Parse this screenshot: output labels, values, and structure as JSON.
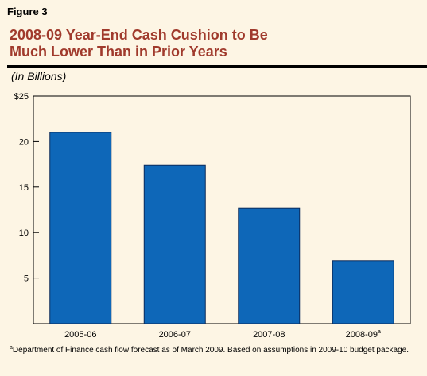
{
  "figure_label": "Figure 3",
  "title_lines": [
    "2008-09 Year-End Cash Cushion to Be",
    "Much Lower Than in Prior Years"
  ],
  "units_label": "(In Billions)",
  "footnote": {
    "marker": "a",
    "text": "Department of Finance cash flow forecast as of March 2009. Based on assumptions in 2009-10 budget package."
  },
  "colors": {
    "bar": "#0e67b8",
    "bar_stroke": "#0a2a5a",
    "title": "#a03a2c",
    "background": "#fdf5e4"
  },
  "chart_data": {
    "type": "bar",
    "categories": [
      "2005-06",
      "2006-07",
      "2007-08",
      "2008-09"
    ],
    "category_superscripts": [
      "",
      "",
      "",
      "a"
    ],
    "values": [
      21.0,
      17.4,
      12.7,
      6.9
    ],
    "ylim": [
      0,
      25
    ],
    "yticks": [
      0,
      5,
      10,
      15,
      20,
      25
    ],
    "ytick_labels": [
      "",
      "5",
      "10",
      "15",
      "20",
      "$25"
    ],
    "grid": false,
    "title": "2008-09 Year-End Cash Cushion to Be Much Lower Than in Prior Years",
    "xlabel": "",
    "ylabel": "(In Billions)"
  }
}
